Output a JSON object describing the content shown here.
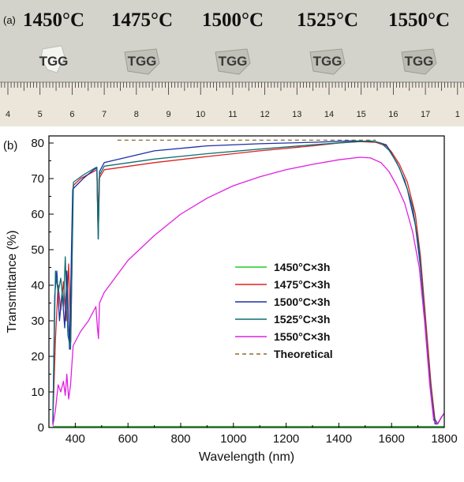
{
  "panel_a": {
    "tag": "(a)",
    "temperatures": [
      "1450°C",
      "1475°C",
      "1500°C",
      "1525°C",
      "1550°C"
    ],
    "sample_text": "TGG",
    "ruler_numbers": [
      "4",
      "5",
      "6",
      "7",
      "8",
      "9",
      "10",
      "11",
      "12",
      "13",
      "14",
      "15",
      "16",
      "17",
      "1"
    ]
  },
  "chart_data": {
    "type": "line",
    "tag": "(b)",
    "xlabel": "Wavelength (nm)",
    "ylabel": "Transmittance (%)",
    "xlim": [
      300,
      1800
    ],
    "ylim": [
      0,
      82
    ],
    "xticks": [
      400,
      600,
      800,
      1000,
      1200,
      1400,
      1600,
      1800
    ],
    "yticks": [
      0,
      10,
      20,
      30,
      40,
      50,
      60,
      70,
      80
    ],
    "grid": false,
    "legend_position": "center",
    "series": [
      {
        "name": "1450°C×3h",
        "color": "#22cc22",
        "style": "solid",
        "points": [
          [
            315,
            0.3
          ],
          [
            400,
            0.3
          ],
          [
            800,
            0.3
          ],
          [
            1200,
            0.3
          ],
          [
            1600,
            0.3
          ],
          [
            1790,
            0.3
          ],
          [
            1800,
            0.3
          ]
        ]
      },
      {
        "name": "1475°C×3h",
        "color": "#dd2222",
        "style": "solid",
        "points": [
          [
            315,
            2
          ],
          [
            325,
            25
          ],
          [
            335,
            40
          ],
          [
            345,
            33
          ],
          [
            355,
            41
          ],
          [
            365,
            30
          ],
          [
            375,
            46
          ],
          [
            383,
            24
          ],
          [
            392,
            68
          ],
          [
            420,
            70
          ],
          [
            470,
            72
          ],
          [
            482,
            72.5
          ],
          [
            486,
            56
          ],
          [
            490,
            70
          ],
          [
            510,
            72.5
          ],
          [
            700,
            74.5
          ],
          [
            900,
            76.2
          ],
          [
            1100,
            77.8
          ],
          [
            1300,
            79.2
          ],
          [
            1400,
            80
          ],
          [
            1480,
            80.4
          ],
          [
            1540,
            80.2
          ],
          [
            1580,
            79.2
          ],
          [
            1600,
            77.5
          ],
          [
            1630,
            74
          ],
          [
            1660,
            69
          ],
          [
            1690,
            60
          ],
          [
            1710,
            48
          ],
          [
            1730,
            30
          ],
          [
            1750,
            12
          ],
          [
            1765,
            2
          ],
          [
            1775,
            1
          ],
          [
            1790,
            3
          ],
          [
            1800,
            4
          ]
        ]
      },
      {
        "name": "1500°C×3h",
        "color": "#1c2fa8",
        "style": "solid",
        "points": [
          [
            315,
            1
          ],
          [
            322,
            37
          ],
          [
            330,
            44
          ],
          [
            340,
            30
          ],
          [
            350,
            38
          ],
          [
            360,
            28
          ],
          [
            368,
            44
          ],
          [
            378,
            22
          ],
          [
            390,
            67
          ],
          [
            430,
            70
          ],
          [
            470,
            72.5
          ],
          [
            482,
            73
          ],
          [
            487,
            53
          ],
          [
            492,
            72
          ],
          [
            510,
            74.5
          ],
          [
            700,
            77.8
          ],
          [
            900,
            79.2
          ],
          [
            1100,
            79.8
          ],
          [
            1300,
            80.2
          ],
          [
            1450,
            80.6
          ],
          [
            1540,
            80.4
          ],
          [
            1580,
            79.5
          ],
          [
            1600,
            77
          ],
          [
            1630,
            73
          ],
          [
            1660,
            67
          ],
          [
            1690,
            57
          ],
          [
            1710,
            45
          ],
          [
            1730,
            27
          ],
          [
            1750,
            10
          ],
          [
            1765,
            1
          ],
          [
            1775,
            1
          ],
          [
            1790,
            3
          ],
          [
            1800,
            4
          ]
        ]
      },
      {
        "name": "1525°C×3h",
        "color": "#0e6f6f",
        "style": "solid",
        "points": [
          [
            315,
            3
          ],
          [
            325,
            44
          ],
          [
            335,
            38
          ],
          [
            345,
            42
          ],
          [
            355,
            34
          ],
          [
            362,
            48
          ],
          [
            372,
            26
          ],
          [
            382,
            22
          ],
          [
            393,
            69
          ],
          [
            430,
            71
          ],
          [
            475,
            73
          ],
          [
            482,
            73.2
          ],
          [
            487,
            53
          ],
          [
            492,
            71
          ],
          [
            510,
            73.5
          ],
          [
            700,
            75.5
          ],
          [
            900,
            77
          ],
          [
            1100,
            78.3
          ],
          [
            1300,
            79.5
          ],
          [
            1450,
            80.3
          ],
          [
            1520,
            80.6
          ],
          [
            1560,
            80
          ],
          [
            1590,
            78
          ],
          [
            1620,
            74.5
          ],
          [
            1650,
            69.5
          ],
          [
            1680,
            62
          ],
          [
            1705,
            50
          ],
          [
            1725,
            32
          ],
          [
            1745,
            14
          ],
          [
            1760,
            3
          ],
          [
            1775,
            1
          ],
          [
            1790,
            3
          ],
          [
            1800,
            4
          ]
        ]
      },
      {
        "name": "1550°C×3h",
        "color": "#e020e0",
        "style": "solid",
        "points": [
          [
            315,
            0.5
          ],
          [
            325,
            5
          ],
          [
            335,
            12
          ],
          [
            345,
            10
          ],
          [
            355,
            13
          ],
          [
            362,
            9
          ],
          [
            368,
            15
          ],
          [
            375,
            8
          ],
          [
            382,
            12
          ],
          [
            392,
            23
          ],
          [
            420,
            27
          ],
          [
            450,
            30
          ],
          [
            478,
            34
          ],
          [
            484,
            28
          ],
          [
            488,
            25
          ],
          [
            492,
            35
          ],
          [
            510,
            38
          ],
          [
            560,
            43
          ],
          [
            600,
            47
          ],
          [
            700,
            54
          ],
          [
            800,
            60
          ],
          [
            900,
            64.5
          ],
          [
            1000,
            68
          ],
          [
            1100,
            70.5
          ],
          [
            1200,
            72.5
          ],
          [
            1300,
            74
          ],
          [
            1400,
            75.3
          ],
          [
            1480,
            76
          ],
          [
            1520,
            75.8
          ],
          [
            1560,
            74.5
          ],
          [
            1590,
            72
          ],
          [
            1620,
            68
          ],
          [
            1650,
            63
          ],
          [
            1680,
            55
          ],
          [
            1705,
            45
          ],
          [
            1725,
            30
          ],
          [
            1745,
            12
          ],
          [
            1760,
            2
          ],
          [
            1775,
            1
          ],
          [
            1790,
            3
          ],
          [
            1800,
            4
          ]
        ]
      },
      {
        "name": "Theoretical",
        "color": "#8a6d2a",
        "style": "dashed",
        "points": [
          [
            560,
            80.8
          ],
          [
            1540,
            80.8
          ]
        ]
      }
    ]
  }
}
